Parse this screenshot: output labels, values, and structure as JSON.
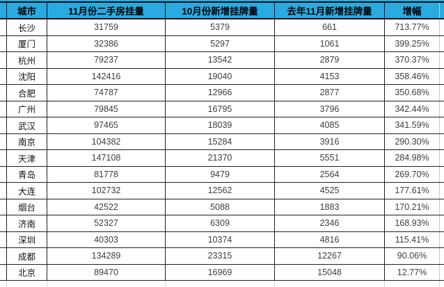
{
  "page": {
    "background": "#ffffff"
  },
  "table": {
    "header_bg": "#29abe2",
    "grid_color": "#1f1f1f",
    "light_grid_color": "#c6c6c6",
    "headers": [
      "城市",
      "11月份二手房挂量",
      "10月份新增挂牌量",
      "去年11月新增挂牌量",
      "增幅"
    ],
    "rows": [
      {
        "city": "长沙",
        "nov_secondhand_listings": "31759",
        "oct_new_listings": "5379",
        "last_nov_new_listings": "661",
        "growth": "713.77%"
      },
      {
        "city": "厦门",
        "nov_secondhand_listings": "32386",
        "oct_new_listings": "5297",
        "last_nov_new_listings": "1061",
        "growth": "399.25%"
      },
      {
        "city": "杭州",
        "nov_secondhand_listings": "79237",
        "oct_new_listings": "13542",
        "last_nov_new_listings": "2879",
        "growth": "370.37%"
      },
      {
        "city": "沈阳",
        "nov_secondhand_listings": "142416",
        "oct_new_listings": "19040",
        "last_nov_new_listings": "4153",
        "growth": "358.46%"
      },
      {
        "city": "合肥",
        "nov_secondhand_listings": "74787",
        "oct_new_listings": "12966",
        "last_nov_new_listings": "2877",
        "growth": "350.68%"
      },
      {
        "city": "广州",
        "nov_secondhand_listings": "79845",
        "oct_new_listings": "16795",
        "last_nov_new_listings": "3796",
        "growth": "342.44%"
      },
      {
        "city": "武汉",
        "nov_secondhand_listings": "97465",
        "oct_new_listings": "18039",
        "last_nov_new_listings": "4085",
        "growth": "341.59%"
      },
      {
        "city": "南京",
        "nov_secondhand_listings": "104382",
        "oct_new_listings": "15284",
        "last_nov_new_listings": "3916",
        "growth": "290.30%"
      },
      {
        "city": "天津",
        "nov_secondhand_listings": "147108",
        "oct_new_listings": "21370",
        "last_nov_new_listings": "5551",
        "growth": "284.98%"
      },
      {
        "city": "青岛",
        "nov_secondhand_listings": "81778",
        "oct_new_listings": "9479",
        "last_nov_new_listings": "2564",
        "growth": "269.70%"
      },
      {
        "city": "大连",
        "nov_secondhand_listings": "102732",
        "oct_new_listings": "12562",
        "last_nov_new_listings": "4525",
        "growth": "177.61%"
      },
      {
        "city": "烟台",
        "nov_secondhand_listings": "42522",
        "oct_new_listings": "5088",
        "last_nov_new_listings": "1883",
        "growth": "170.21%"
      },
      {
        "city": "济南",
        "nov_secondhand_listings": "52327",
        "oct_new_listings": "6309",
        "last_nov_new_listings": "2346",
        "growth": "168.93%"
      },
      {
        "city": "深圳",
        "nov_secondhand_listings": "40303",
        "oct_new_listings": "10374",
        "last_nov_new_listings": "4816",
        "growth": "115.41%"
      },
      {
        "city": "成都",
        "nov_secondhand_listings": "134289",
        "oct_new_listings": "23315",
        "last_nov_new_listings": "12267",
        "growth": "90.06%"
      },
      {
        "city": "北京",
        "nov_secondhand_listings": "89470",
        "oct_new_listings": "16969",
        "last_nov_new_listings": "15048",
        "growth": "12.77%"
      }
    ]
  }
}
